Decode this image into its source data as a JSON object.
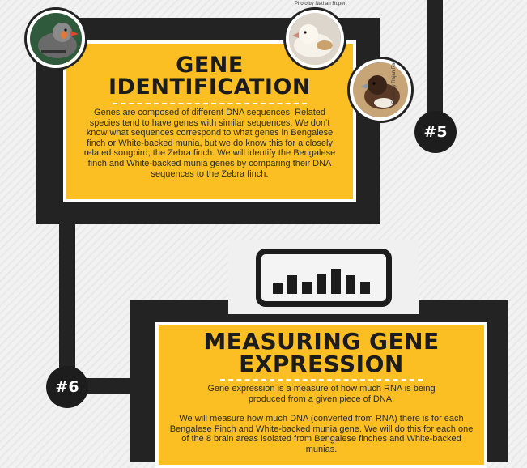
{
  "section5": {
    "number": "#5",
    "title_line1": "GENE",
    "title_line2": "IDENTIFICATION",
    "body": "Genes are composed of different DNA sequences. Related species tend to have genes with similar sequences. We don't know what sequences correspond to what genes in Bengalese finch or White-backed munia, but we do know this for a closely related songbird, the Zebra finch. We will identify the Bengalese finch and White-backed munia genes by comparing their DNA sequences to the Zebra finch.",
    "photo_credit_top": "Photo by Nathan Rupert",
    "photo_credit_side": "Photo by Rajan Rao"
  },
  "section6": {
    "number": "#6",
    "title_line1": "MEASURING GENE",
    "title_line2": "EXPRESSION",
    "body_p1": "Gene expression is a measure of how much RNA is being produced from a given piece of DNA.",
    "body_p2": "We will measure how much DNA (converted from RNA) there is for each Bengalese Finch and White-backed munia gene. We will do this for each one of the 8 brain areas isolated from Bengalese finches and White-backed munias."
  },
  "icons": {
    "bar_chart": "bar-chart-icon",
    "bird1": "zebra-finch-photo",
    "bird2": "white-backed-munia-photo",
    "bird3": "bengalese-finch-photo"
  },
  "colors": {
    "accent": "#fbbf23",
    "dark": "#232323"
  }
}
